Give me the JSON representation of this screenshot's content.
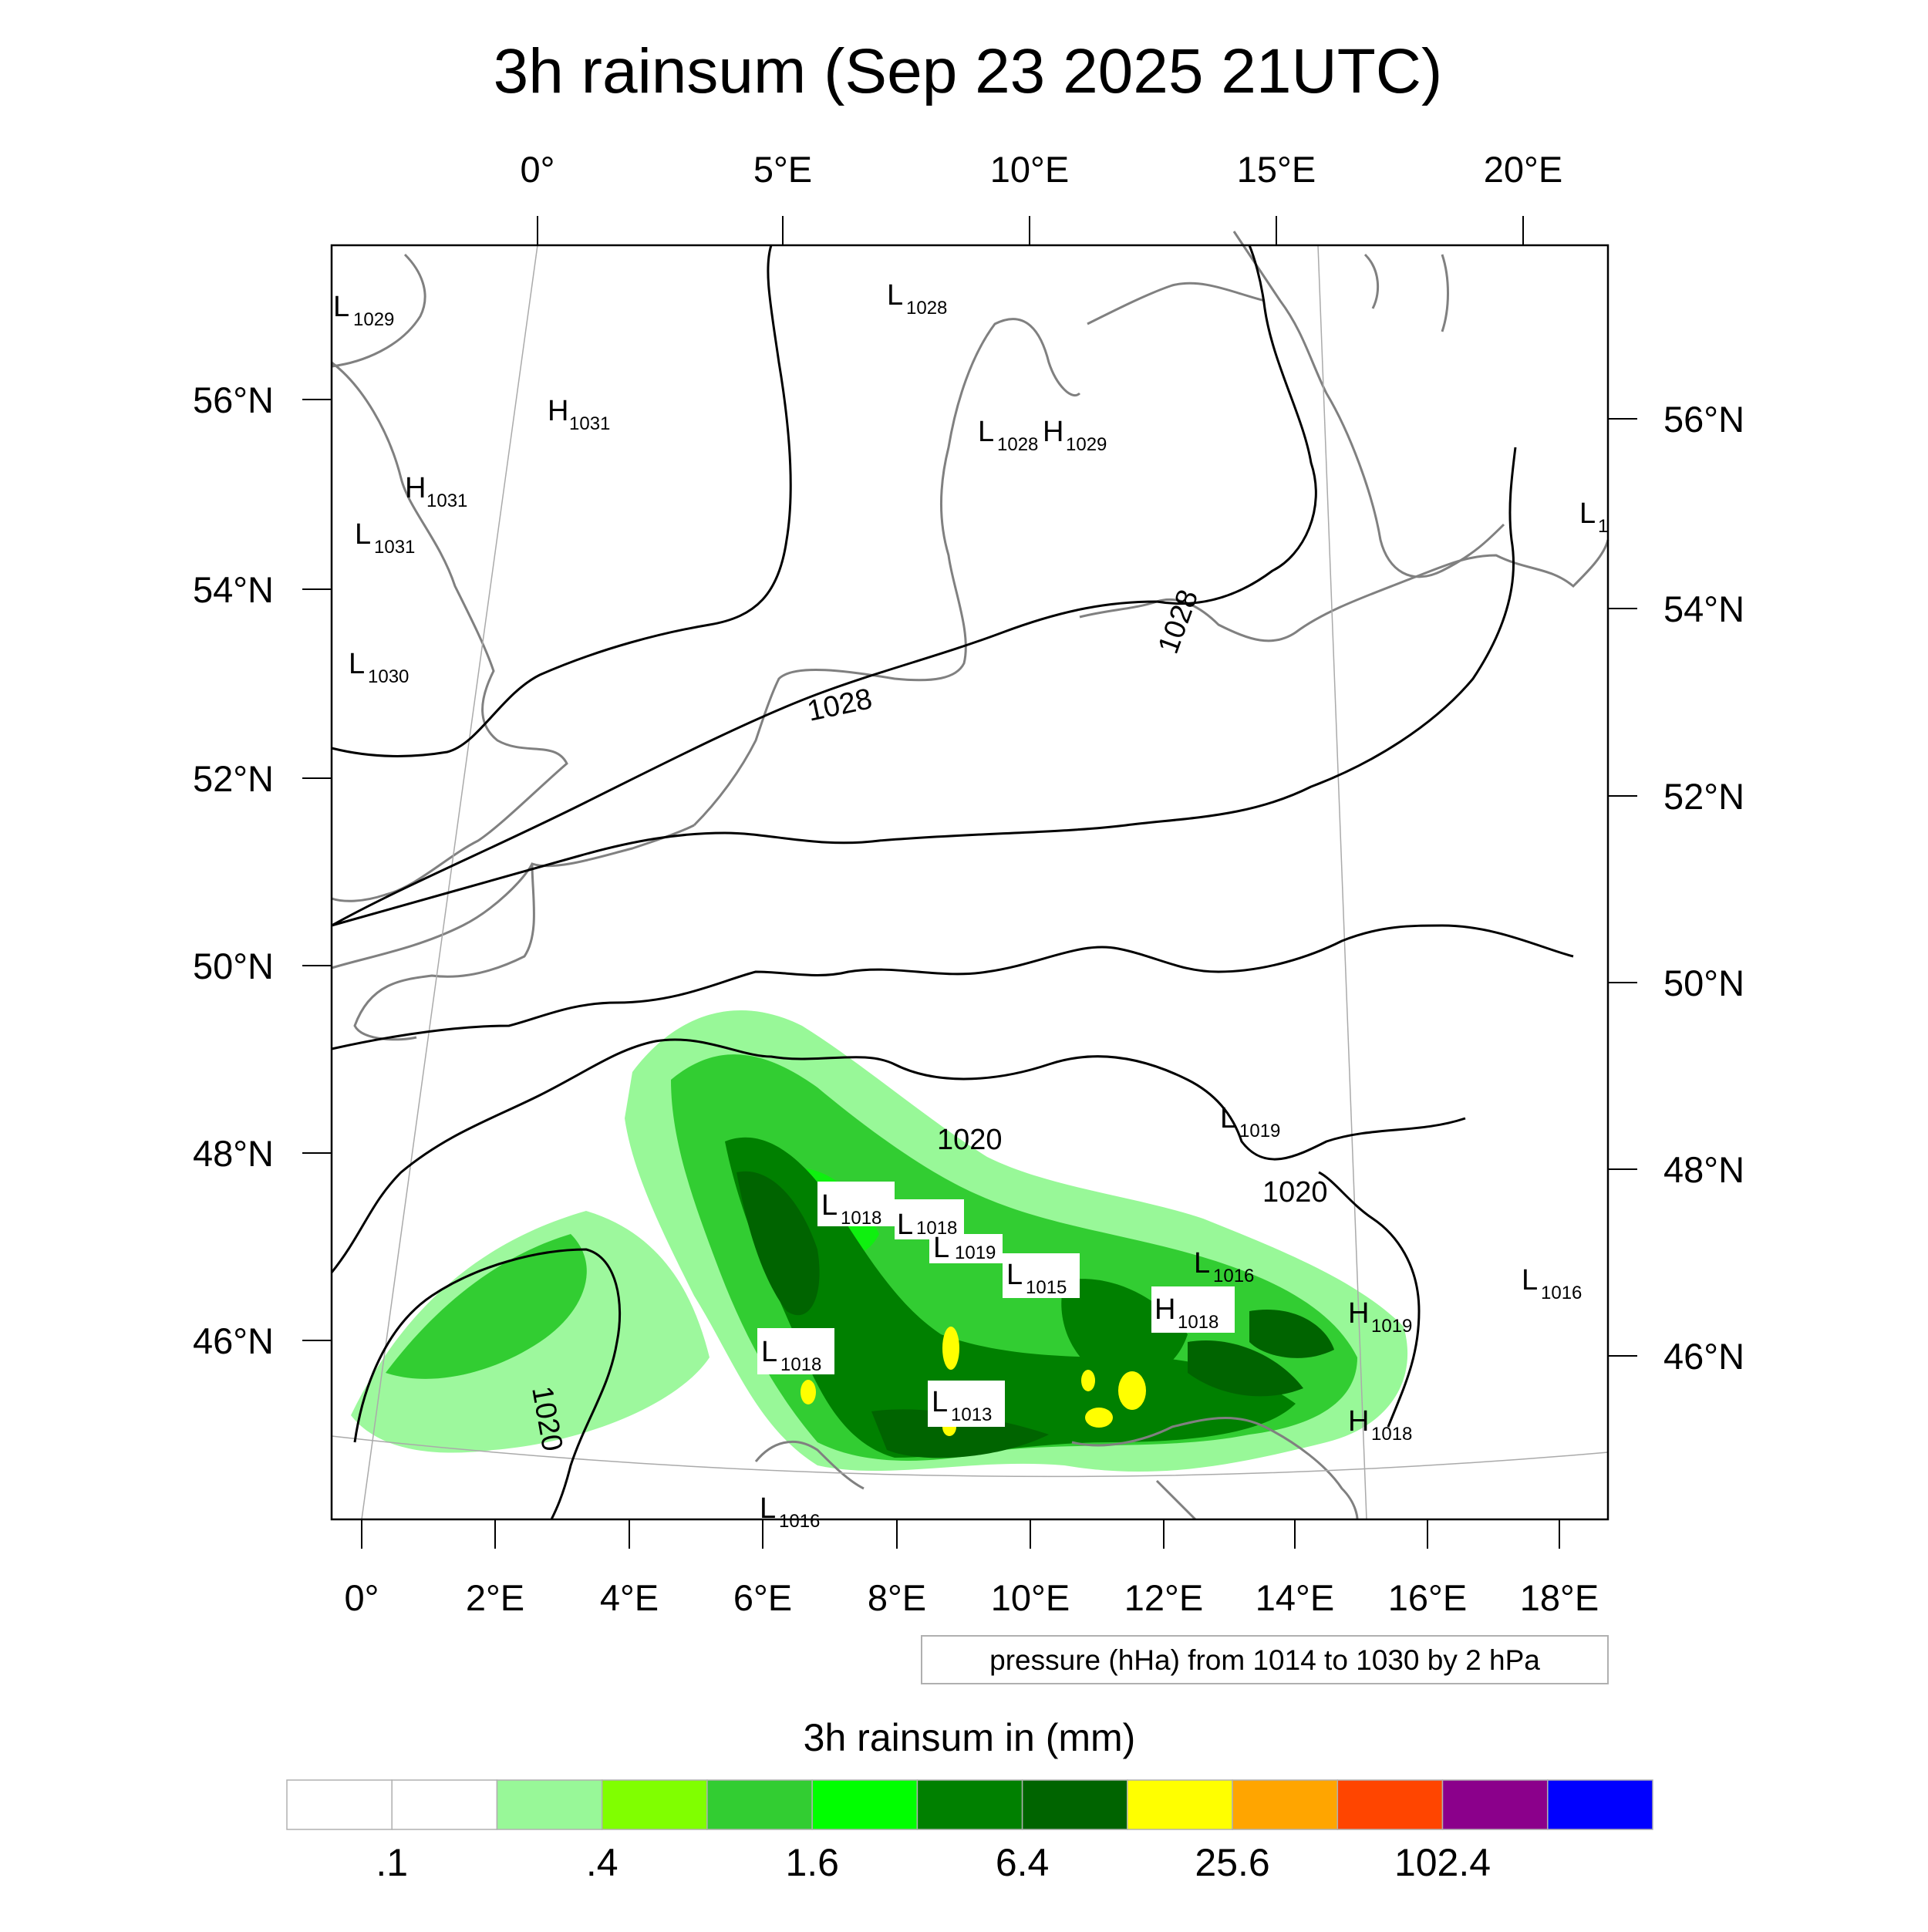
{
  "title": "3h rainsum (Sep 23 2025 21UTC)",
  "top_lon_labels": [
    "0°",
    "5°E",
    "10°E",
    "15°E",
    "20°E"
  ],
  "bottom_lon_labels": [
    "0°",
    "2°E",
    "4°E",
    "6°E",
    "8°E",
    "10°E",
    "12°E",
    "14°E",
    "16°E",
    "18°E"
  ],
  "left_lat_labels": [
    "56°N",
    "54°N",
    "52°N",
    "50°N",
    "48°N",
    "46°N"
  ],
  "right_lat_labels": [
    "56°N",
    "54°N",
    "52°N",
    "50°N",
    "48°N",
    "46°N"
  ],
  "pressure_centers": [
    {
      "t": "L",
      "v": "1029"
    },
    {
      "t": "H",
      "v": "1031"
    },
    {
      "t": "H",
      "v": "1031"
    },
    {
      "t": "L",
      "v": "1031"
    },
    {
      "t": "L",
      "v": "1030"
    },
    {
      "t": "L",
      "v": "1028"
    },
    {
      "t": "L",
      "v": "1028"
    },
    {
      "t": "H",
      "v": "1029"
    },
    {
      "t": "L",
      "v": "1"
    },
    {
      "t": "L",
      "v": "1019"
    },
    {
      "t": "L",
      "v": "1018"
    },
    {
      "t": "L",
      "v": "1018"
    },
    {
      "t": "L",
      "v": "1019"
    },
    {
      "t": "L",
      "v": "1015"
    },
    {
      "t": "L",
      "v": "1016"
    },
    {
      "t": "H",
      "v": "1018"
    },
    {
      "t": "L",
      "v": "1016"
    },
    {
      "t": "H",
      "v": "1019"
    },
    {
      "t": "L",
      "v": "1018"
    },
    {
      "t": "L",
      "v": "1013"
    },
    {
      "t": "H",
      "v": "1018"
    },
    {
      "t": "L",
      "v": "1016"
    }
  ],
  "isobar_labels": [
    "1028",
    "1028",
    "1020",
    "1020",
    "1020"
  ],
  "contour_note": "pressure (hHa) from 1014 to 1030 by 2 hPa",
  "colorbar": {
    "title": "3h rainsum in (mm)",
    "colors": [
      "#ffffff",
      "#ffffff",
      "#98f898",
      "#80ff00",
      "#32cd32",
      "#00ff00",
      "#008000",
      "#006400",
      "#ffff00",
      "#ffa500",
      "#ff4500",
      "#8b008b",
      "#0000ff"
    ],
    "labels": [
      ".1",
      ".4",
      "1.6",
      "6.4",
      "25.6",
      "102.4"
    ]
  }
}
